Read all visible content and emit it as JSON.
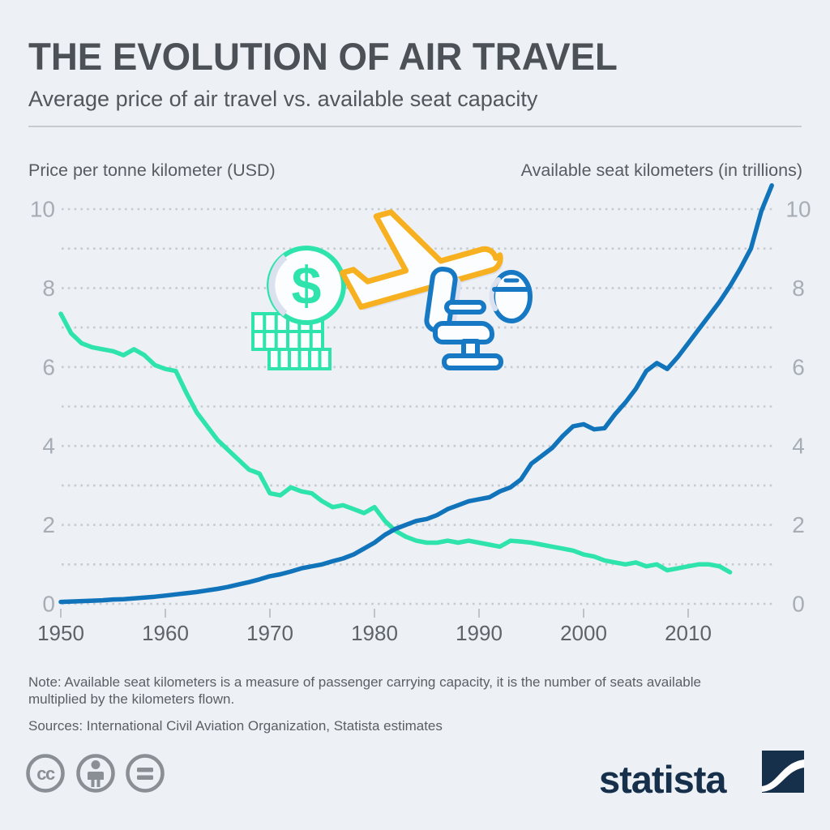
{
  "header": {
    "title": "THE EVOLUTION OF AIR TRAVEL",
    "subtitle": "Average price of air travel vs. available seat capacity"
  },
  "axes": {
    "left_label": "Price per tonne kilometer (USD)",
    "right_label": "Available seat kilometers (in trillions)"
  },
  "footer": {
    "note_line1": "Note: Available seat kilometers is a measure of passenger carrying capacity, it is the number of seats available",
    "note_line2": "multiplied by the kilometers flown.",
    "sources": "Sources: International Civil Aviation Organization, Statista estimates",
    "brand": "statista",
    "license_icons": [
      "cc-icon",
      "attribution-person-icon",
      "equals-icon"
    ]
  },
  "colors": {
    "background": "#edf1f6",
    "title_text": "#4b5156",
    "grid_dots": "#c6cbd2",
    "y_tick_text": "#a7adb5",
    "x_tick_text": "#5d6369",
    "price_line": "#2fe3ad",
    "seats_line": "#1174bb",
    "icon_yellow": "#f7b01f",
    "icon_blue": "#1779c4",
    "icon_shadow": "#dbe1ee",
    "brand_navy": "#16304b"
  },
  "chart_data": {
    "type": "line",
    "title": "THE EVOLUTION OF AIR TRAVEL",
    "subtitle": "Average price of air travel vs. available seat capacity",
    "grid": "dotted horizontal lines every 1 unit, labels every 2 units on both sides",
    "xlim": [
      1950,
      2018
    ],
    "ylim": [
      0,
      10.7
    ],
    "x_ticks": [
      1950,
      1960,
      1970,
      1980,
      1990,
      2000,
      2010
    ],
    "y_ticks": [
      0,
      2,
      4,
      6,
      8,
      10
    ],
    "y_gridlines": [
      0,
      1,
      2,
      3,
      4,
      5,
      6,
      7,
      8,
      9,
      10
    ],
    "series": [
      {
        "name": "Price per tonne kilometer (USD)",
        "axis": "left",
        "color": "#2fe3ad",
        "start_year": 1950,
        "end_year": 2014,
        "values": [
          7.35,
          6.85,
          6.6,
          6.5,
          6.45,
          6.4,
          6.3,
          6.45,
          6.3,
          6.05,
          5.95,
          5.9,
          5.35,
          4.85,
          4.5,
          4.15,
          3.9,
          3.65,
          3.4,
          3.3,
          2.8,
          2.75,
          2.95,
          2.85,
          2.8,
          2.6,
          2.45,
          2.5,
          2.4,
          2.3,
          2.45,
          2.1,
          1.85,
          1.7,
          1.6,
          1.55,
          1.55,
          1.6,
          1.55,
          1.6,
          1.55,
          1.5,
          1.45,
          1.6,
          1.58,
          1.55,
          1.5,
          1.45,
          1.4,
          1.35,
          1.25,
          1.2,
          1.1,
          1.05,
          1.0,
          1.05,
          0.95,
          1.0,
          0.85,
          0.9,
          0.95,
          1.0,
          1.0,
          0.95,
          0.8
        ]
      },
      {
        "name": "Available seat kilometers (in trillions)",
        "axis": "right",
        "color": "#1174bb",
        "start_year": 1950,
        "end_year": 2018,
        "values": [
          0.05,
          0.06,
          0.07,
          0.08,
          0.09,
          0.11,
          0.12,
          0.14,
          0.16,
          0.18,
          0.21,
          0.24,
          0.27,
          0.3,
          0.34,
          0.38,
          0.43,
          0.49,
          0.55,
          0.62,
          0.7,
          0.75,
          0.82,
          0.9,
          0.95,
          1.0,
          1.08,
          1.15,
          1.25,
          1.4,
          1.55,
          1.75,
          1.9,
          2.0,
          2.1,
          2.15,
          2.25,
          2.4,
          2.5,
          2.6,
          2.65,
          2.7,
          2.85,
          2.95,
          3.15,
          3.55,
          3.75,
          3.95,
          4.25,
          4.5,
          4.55,
          4.42,
          4.45,
          4.8,
          5.1,
          5.45,
          5.9,
          6.1,
          5.95,
          6.25,
          6.6,
          6.95,
          7.3,
          7.65,
          8.05,
          8.5,
          9.0,
          9.95,
          10.6
        ]
      }
    ]
  }
}
